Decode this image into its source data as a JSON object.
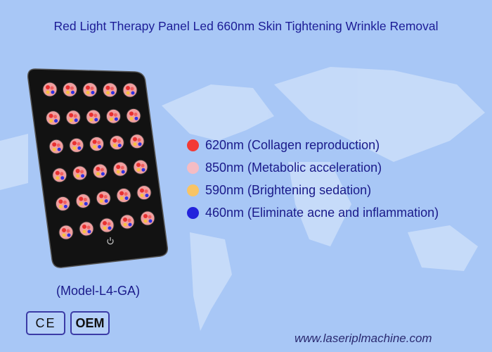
{
  "title": "Red Light Therapy Panel Led 660nm Skin Tightening Wrinkle Removal",
  "features": [
    {
      "label": "620nm (Collagen reproduction)",
      "color": "#f23a35"
    },
    {
      "label": "850nm (Metabolic acceleration)",
      "color": "#f5bcc4"
    },
    {
      "label": "590nm (Brightening sedation)",
      "color": "#f8c466"
    },
    {
      "label": "460nm (Eliminate acne and inflammation)",
      "color": "#2323dc"
    }
  ],
  "model": "(Model-L4-GA)",
  "badges": {
    "ce": "CE",
    "oem": "OEM"
  },
  "website": "www.laseriplmachine.com",
  "colors": {
    "background": "#a8c7f6",
    "text": "#1a1a8a",
    "panel": "#111111"
  }
}
